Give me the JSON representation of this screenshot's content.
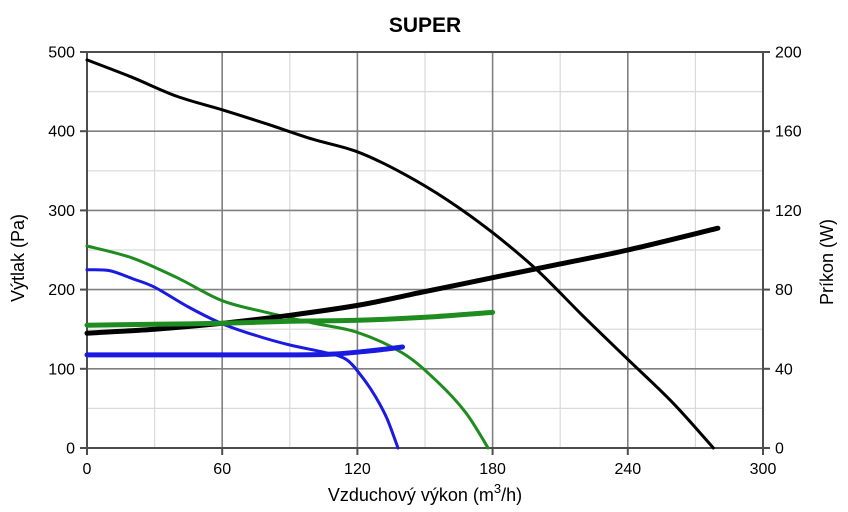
{
  "chart_data": {
    "type": "line",
    "title": "SUPER",
    "xlabel": "Vzduchový výkon (m³/h)",
    "xlabel_parts": {
      "prefix": "Vzduchový výkon (m",
      "sup": "3",
      "suffix": "/h)"
    },
    "ylabel_left": "Výtlak (Pa)",
    "ylabel_right": "Príkon (W)",
    "xlim": [
      0,
      300
    ],
    "ylim_left": [
      0,
      500
    ],
    "ylim_right": [
      0,
      200
    ],
    "x_major": 60,
    "x_minor": 30,
    "y_left_major": 100,
    "y_left_minor": 50,
    "x_ticks": [
      0,
      60,
      120,
      180,
      240,
      300
    ],
    "y_left_ticks": [
      0,
      100,
      200,
      300,
      400,
      500
    ],
    "y_right_ticks": [
      0,
      40,
      80,
      120,
      160,
      200
    ],
    "grid": "major+minor",
    "legend": "none",
    "series": [
      {
        "id": "pressure-max-speed-black",
        "name": "Výtlak - max. stupeň",
        "axis": "left",
        "color": "#000000",
        "width": 3,
        "points": [
          [
            0,
            490
          ],
          [
            20,
            468
          ],
          [
            40,
            444
          ],
          [
            60,
            427
          ],
          [
            80,
            409
          ],
          [
            100,
            390
          ],
          [
            120,
            374
          ],
          [
            140,
            347
          ],
          [
            160,
            313
          ],
          [
            180,
            272
          ],
          [
            200,
            224
          ],
          [
            220,
            167
          ],
          [
            240,
            112
          ],
          [
            260,
            57
          ],
          [
            278,
            0
          ]
        ]
      },
      {
        "id": "pressure-mid-speed-green",
        "name": "Výtlak - stredný stupeň",
        "axis": "left",
        "color": "#1e8c1e",
        "width": 3,
        "points": [
          [
            0,
            255
          ],
          [
            20,
            240
          ],
          [
            40,
            215
          ],
          [
            60,
            186
          ],
          [
            80,
            171
          ],
          [
            100,
            158
          ],
          [
            120,
            146
          ],
          [
            140,
            120
          ],
          [
            155,
            85
          ],
          [
            168,
            45
          ],
          [
            178,
            0
          ]
        ]
      },
      {
        "id": "pressure-low-speed-blue",
        "name": "Výtlak - nízky stupeň",
        "axis": "left",
        "color": "#1a1ae0",
        "width": 3,
        "points": [
          [
            0,
            225
          ],
          [
            10,
            224
          ],
          [
            20,
            214
          ],
          [
            30,
            203
          ],
          [
            45,
            178
          ],
          [
            60,
            157
          ],
          [
            75,
            142
          ],
          [
            90,
            130
          ],
          [
            105,
            121
          ],
          [
            115,
            112
          ],
          [
            122,
            90
          ],
          [
            128,
            65
          ],
          [
            133,
            38
          ],
          [
            138,
            0
          ]
        ]
      },
      {
        "id": "power-max-speed-black",
        "name": "Príkon - max. stupeň",
        "axis": "right",
        "color": "#000000",
        "width": 5,
        "points": [
          [
            0,
            58
          ],
          [
            30,
            60
          ],
          [
            60,
            63
          ],
          [
            90,
            67
          ],
          [
            120,
            72
          ],
          [
            150,
            79
          ],
          [
            180,
            86
          ],
          [
            210,
            93
          ],
          [
            240,
            100
          ],
          [
            280,
            111
          ]
        ]
      },
      {
        "id": "power-mid-speed-green",
        "name": "Príkon - stredný stupeň",
        "axis": "right",
        "color": "#1e8c1e",
        "width": 5,
        "points": [
          [
            0,
            62
          ],
          [
            30,
            62.5
          ],
          [
            60,
            63
          ],
          [
            90,
            64
          ],
          [
            120,
            64.5
          ],
          [
            150,
            66
          ],
          [
            180,
            68.5
          ]
        ]
      },
      {
        "id": "power-low-speed-blue",
        "name": "Príkon - nízky stupeň",
        "axis": "right",
        "color": "#1a1ae0",
        "width": 5,
        "points": [
          [
            0,
            47
          ],
          [
            30,
            47
          ],
          [
            60,
            47
          ],
          [
            90,
            47
          ],
          [
            110,
            47.5
          ],
          [
            125,
            49
          ],
          [
            133,
            50
          ],
          [
            140,
            51
          ]
        ]
      }
    ],
    "colors": {
      "grid_major": "#808080",
      "grid_minor": "#d9d9d9",
      "axis_border": "#4d4d4d",
      "text": "#000000"
    }
  }
}
